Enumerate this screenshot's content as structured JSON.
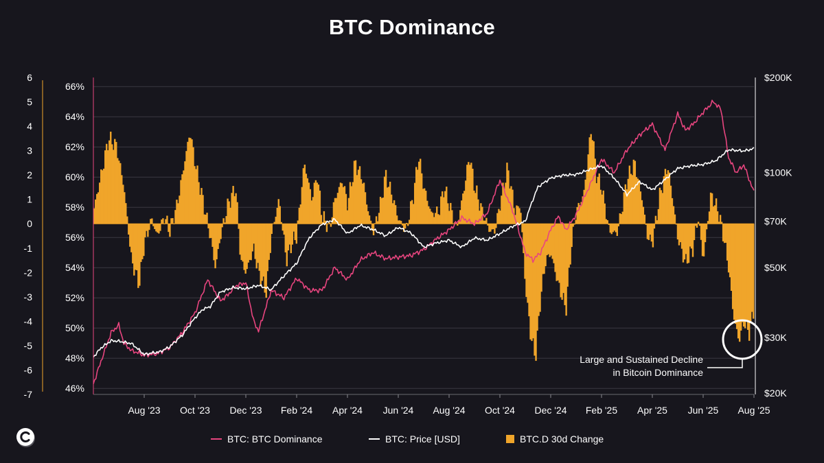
{
  "title": "BTC Dominance",
  "colors": {
    "background": "#17161d",
    "dominance": "#e8457f",
    "price": "#ffffff",
    "change": "#f0a52a",
    "grid": "#3a3942"
  },
  "legend": {
    "dominance": "BTC: BTC Dominance",
    "price": "BTC: Price [USD]",
    "change": "BTC.D 30d Change"
  },
  "annotation": {
    "line1": "Large and Sustained Decline",
    "line2": "in Bitcoin Dominance"
  },
  "logo_icon": "coinglass-c-icon",
  "chart_data": {
    "type": "line",
    "grid": "horizontal",
    "x_ticks": [
      "Aug '23",
      "Oct '23",
      "Dec '23",
      "Feb '24",
      "Apr '24",
      "Jun '24",
      "Aug '24",
      "Oct '24",
      "Dec '24",
      "Feb '25",
      "Apr '25",
      "Jun '25",
      "Aug '25"
    ],
    "left_axis": {
      "ticks": [
        "6",
        "5",
        "4",
        "3",
        "2",
        "1",
        "0",
        "-1",
        "-2",
        "-3",
        "-4",
        "-5",
        "-6",
        "-7"
      ],
      "range": [
        -7,
        6
      ]
    },
    "mid_axis": {
      "ticks": [
        "66%",
        "64%",
        "62%",
        "60%",
        "58%",
        "56%",
        "54%",
        "52%",
        "50%",
        "48%",
        "46%"
      ],
      "range": [
        45.6,
        66.6
      ]
    },
    "right_axis": {
      "scale": "log",
      "ticks": [
        "$200K",
        "$100K",
        "$70K",
        "$50K",
        "$30K",
        "$20K"
      ],
      "tick_values": [
        200000,
        100000,
        70000,
        50000,
        30000,
        20000
      ]
    },
    "x_range_months": [
      0,
      26
    ],
    "series": [
      {
        "name": "BTC: BTC Dominance",
        "kind": "line",
        "x": [
          0.0,
          0.3,
          0.7,
          1.0,
          1.2,
          1.5,
          1.7,
          2.0,
          2.5,
          3.0,
          3.5,
          4.0,
          4.5,
          5.0,
          5.3,
          5.6,
          6.0,
          6.3,
          6.5,
          7.0,
          7.5,
          8.0,
          8.5,
          9.0,
          9.5,
          10.0,
          10.5,
          11.0,
          11.5,
          12.0,
          12.5,
          13.0,
          13.5,
          14.0,
          14.5,
          15.0,
          15.5,
          16.0,
          16.5,
          17.0,
          17.3,
          17.6,
          18.0,
          18.3,
          18.6,
          19.0,
          19.5,
          20.0,
          20.5,
          21.0,
          21.5,
          22.0,
          22.5,
          23.0,
          23.3,
          23.6,
          24.0,
          24.4,
          24.7,
          25.0,
          25.3,
          25.6,
          26.0
        ],
        "y": [
          46.3,
          47.8,
          49.7,
          50.2,
          49.0,
          48.5,
          48.4,
          48.2,
          48.3,
          48.7,
          49.7,
          51.0,
          53.2,
          51.8,
          52.2,
          52.8,
          53.0,
          50.5,
          49.8,
          52.5,
          52.0,
          53.3,
          52.5,
          52.5,
          54.0,
          53.2,
          54.5,
          55.0,
          54.6,
          54.7,
          54.8,
          55.2,
          55.9,
          56.5,
          57.3,
          56.9,
          57.6,
          59.8,
          57.8,
          55.0,
          54.5,
          55.0,
          56.5,
          57.4,
          56.5,
          57.5,
          59.3,
          61.2,
          60.3,
          61.8,
          62.8,
          63.5,
          61.8,
          64.2,
          63.1,
          63.5,
          64.3,
          65.0,
          64.5,
          61.3,
          60.3,
          60.8,
          59.0
        ]
      },
      {
        "name": "BTC: Price [USD]",
        "kind": "line",
        "x": [
          0.0,
          0.3,
          0.7,
          1.0,
          1.5,
          2.0,
          2.3,
          2.6,
          3.0,
          3.5,
          4.0,
          4.3,
          4.6,
          5.0,
          5.5,
          6.0,
          6.5,
          7.0,
          7.5,
          8.0,
          8.5,
          9.0,
          9.5,
          10.0,
          10.5,
          11.0,
          11.5,
          12.0,
          12.5,
          13.0,
          13.5,
          14.0,
          14.5,
          15.0,
          15.5,
          16.0,
          16.5,
          17.0,
          17.5,
          18.0,
          18.5,
          19.0,
          19.5,
          20.0,
          20.5,
          21.0,
          21.5,
          22.0,
          22.5,
          23.0,
          23.5,
          24.0,
          24.5,
          25.0,
          25.3,
          25.6,
          26.0
        ],
        "y": [
          26000,
          27800,
          29300,
          29200,
          28700,
          26500,
          26800,
          27000,
          28000,
          30500,
          34600,
          36800,
          37600,
          41800,
          43200,
          42800,
          43900,
          42500,
          47000,
          51500,
          62000,
          68500,
          71000,
          64000,
          68000,
          66000,
          63000,
          67000,
          64300,
          58000,
          59800,
          61000,
          58000,
          62000,
          61000,
          64000,
          67500,
          70000,
          90000,
          96000,
          98000,
          98500,
          102000,
          105000,
          96000,
          85000,
          93500,
          88000,
          95000,
          103000,
          105000,
          106000,
          109000,
          118000,
          117500,
          117000,
          119000
        ]
      },
      {
        "name": "BTC.D 30d Change",
        "kind": "area",
        "x": [
          0.0,
          0.3,
          0.6,
          0.9,
          1.2,
          1.5,
          1.8,
          2.0,
          2.3,
          2.5,
          2.8,
          3.0,
          3.3,
          3.5,
          3.8,
          4.0,
          4.3,
          4.6,
          4.8,
          5.0,
          5.3,
          5.6,
          5.8,
          6.0,
          6.3,
          6.5,
          6.8,
          7.0,
          7.3,
          7.6,
          7.8,
          8.0,
          8.3,
          8.6,
          8.8,
          9.0,
          9.3,
          9.5,
          9.8,
          10.0,
          10.3,
          10.6,
          10.8,
          11.0,
          11.3,
          11.5,
          11.8,
          12.0,
          12.3,
          12.6,
          12.8,
          13.0,
          13.3,
          13.6,
          13.8,
          14.0,
          14.3,
          14.6,
          14.8,
          15.0,
          15.3,
          15.6,
          15.8,
          16.0,
          16.3,
          16.6,
          16.8,
          17.0,
          17.2,
          17.4,
          17.6,
          17.8,
          18.0,
          18.3,
          18.6,
          18.8,
          19.0,
          19.3,
          19.6,
          19.8,
          20.0,
          20.3,
          20.6,
          20.8,
          21.0,
          21.3,
          21.6,
          21.8,
          22.0,
          22.3,
          22.6,
          22.8,
          23.0,
          23.3,
          23.6,
          23.8,
          24.0,
          24.3,
          24.6,
          24.8,
          25.0,
          25.2,
          25.4,
          25.6,
          25.8,
          26.0
        ],
        "y": [
          0.5,
          2.0,
          3.5,
          3.2,
          1.5,
          -1.5,
          -2.5,
          -0.8,
          0.2,
          -0.5,
          0.3,
          -0.3,
          0.8,
          2.0,
          3.8,
          2.5,
          1.0,
          -0.5,
          -1.8,
          -0.5,
          0.8,
          1.5,
          -1.5,
          -2.0,
          -1.0,
          -2.0,
          -2.8,
          -0.5,
          1.0,
          -1.5,
          -0.8,
          -0.5,
          2.5,
          1.0,
          2.0,
          0.3,
          -0.2,
          1.0,
          1.8,
          0.8,
          2.5,
          1.8,
          0.6,
          -0.4,
          0.8,
          2.0,
          1.0,
          0.2,
          -0.3,
          1.2,
          2.8,
          1.5,
          0.4,
          0.5,
          1.5,
          0.8,
          -0.2,
          1.5,
          2.8,
          1.5,
          0.5,
          -0.3,
          -0.3,
          0.8,
          2.3,
          0.5,
          0.8,
          -2.5,
          -4.5,
          -5.5,
          -3.0,
          -1.5,
          -1.2,
          -2.5,
          -3.5,
          -1.0,
          0.5,
          1.2,
          4.0,
          2.0,
          1.5,
          -0.3,
          -0.4,
          0.6,
          1.8,
          2.5,
          1.0,
          -0.5,
          -0.8,
          1.2,
          2.4,
          1.0,
          -0.6,
          -1.6,
          -1.0,
          0.3,
          -1.5,
          1.2,
          0.5,
          -0.5,
          -1.8,
          -3.8,
          -4.8,
          -4.0,
          -4.5,
          -3.5
        ]
      }
    ]
  }
}
